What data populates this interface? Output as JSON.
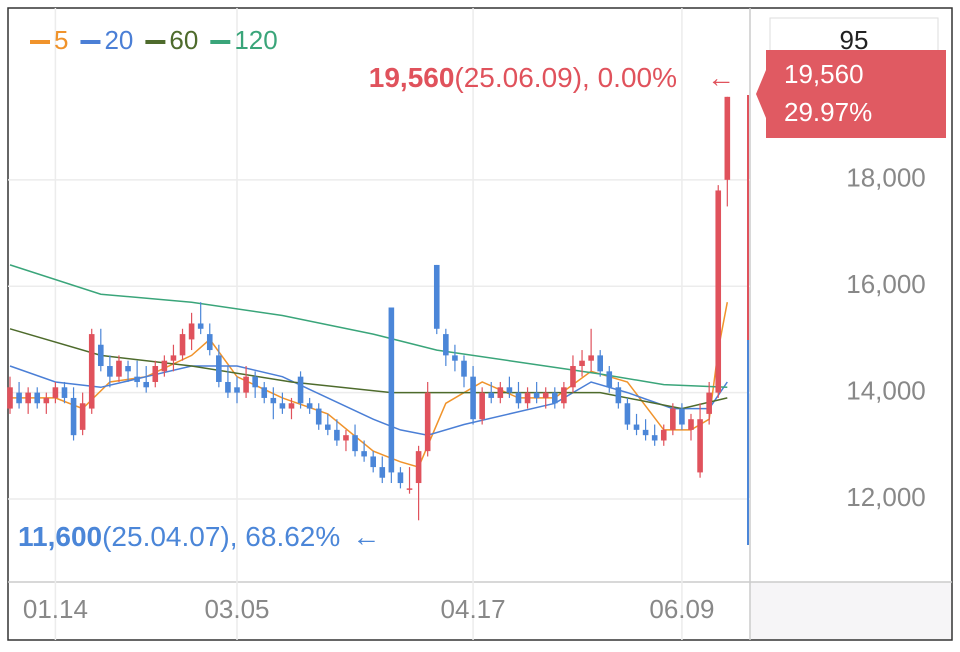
{
  "chart_data": {
    "type": "candlestick",
    "legend": [
      "5",
      "20",
      "60",
      "120"
    ],
    "categories": [
      null,
      null,
      null,
      null,
      null,
      "01.14",
      null,
      null,
      null,
      null,
      null,
      null,
      null,
      null,
      null,
      null,
      null,
      null,
      null,
      null,
      null,
      null,
      null,
      null,
      null,
      "03.05",
      null,
      null,
      null,
      null,
      null,
      null,
      null,
      null,
      null,
      null,
      null,
      null,
      null,
      null,
      null,
      null,
      null,
      null,
      null,
      null,
      null,
      null,
      null,
      null,
      null,
      "04.17",
      null,
      null,
      null,
      null,
      null,
      null,
      null,
      null,
      null,
      null,
      null,
      null,
      null,
      null,
      null,
      null,
      null,
      null,
      null,
      null,
      null,
      null,
      "06.09",
      null,
      null,
      null,
      null,
      null
    ],
    "open": [
      13700,
      14000,
      13800,
      14000,
      13800,
      13900,
      14100,
      13900,
      13300,
      13700,
      14900,
      14500,
      14300,
      14500,
      14300,
      14200,
      14200,
      14400,
      14600,
      14700,
      15000,
      15300,
      15100,
      14700,
      14200,
      14100,
      14000,
      14300,
      14100,
      13900,
      13800,
      13700,
      14300,
      13800,
      13700,
      13400,
      13300,
      13100,
      13200,
      12900,
      12800,
      12600,
      15600,
      12500,
      12200,
      12300,
      12900,
      16400,
      15100,
      14700,
      14600,
      14300,
      13500,
      14000,
      13900,
      14100,
      14000,
      13800,
      14000,
      13900,
      14000,
      13800,
      14100,
      14500,
      14600,
      14700,
      14400,
      14100,
      13800,
      13400,
      13300,
      13200,
      13100,
      13300,
      13700,
      13300,
      12500,
      13600,
      14000,
      18000
    ],
    "high": [
      14300,
      14200,
      14100,
      14100,
      14000,
      14200,
      14200,
      14100,
      14000,
      15200,
      15200,
      14700,
      14700,
      14600,
      14600,
      14500,
      14600,
      14700,
      14900,
      15200,
      15500,
      15700,
      15300,
      14900,
      14500,
      14300,
      14500,
      14400,
      14200,
      14100,
      14000,
      13900,
      14400,
      13900,
      13800,
      13600,
      13500,
      13300,
      13400,
      13100,
      12900,
      12800,
      15600,
      12600,
      12600,
      13000,
      14200,
      16400,
      15200,
      14900,
      14700,
      14500,
      14100,
      14200,
      14200,
      14300,
      14200,
      14100,
      14200,
      14100,
      14100,
      14200,
      14700,
      14800,
      15200,
      14800,
      14500,
      14200,
      13900,
      13600,
      13500,
      13400,
      13400,
      13800,
      13800,
      13600,
      13800,
      14200,
      17900,
      19560
    ],
    "low": [
      13600,
      13700,
      13600,
      13700,
      13600,
      13800,
      13800,
      13100,
      13200,
      13600,
      14400,
      14100,
      14200,
      14200,
      14100,
      14000,
      14100,
      14300,
      14400,
      14600,
      14800,
      15100,
      14700,
      14100,
      13900,
      13800,
      13900,
      13900,
      13800,
      13500,
      13600,
      13500,
      13700,
      13600,
      13300,
      13200,
      13000,
      12900,
      12800,
      12700,
      12500,
      12300,
      12300,
      12200,
      12100,
      11600,
      12800,
      15100,
      14500,
      14400,
      14100,
      13400,
      13400,
      13800,
      13800,
      13900,
      13700,
      13700,
      13800,
      13700,
      13700,
      13700,
      14000,
      14300,
      14400,
      14300,
      14000,
      13700,
      13300,
      13200,
      13100,
      13000,
      13000,
      13200,
      13300,
      13100,
      12400,
      13400,
      13900,
      17500
    ],
    "close": [
      14100,
      13800,
      14000,
      13800,
      13900,
      14100,
      13900,
      13200,
      13800,
      15100,
      14500,
      14300,
      14600,
      14400,
      14200,
      14100,
      14500,
      14600,
      14700,
      15100,
      15300,
      15200,
      14800,
      14200,
      14000,
      14000,
      14300,
      14100,
      13900,
      13800,
      13700,
      13800,
      13800,
      13700,
      13400,
      13300,
      13100,
      13200,
      12900,
      12800,
      12600,
      12400,
      12500,
      12300,
      12200,
      12900,
      14000,
      15200,
      14700,
      14600,
      14300,
      13500,
      14000,
      13900,
      14100,
      14000,
      13800,
      14000,
      13900,
      14000,
      13800,
      14100,
      14500,
      14600,
      14700,
      14400,
      14100,
      13800,
      13400,
      13300,
      13200,
      13100,
      13300,
      13700,
      13400,
      13500,
      13500,
      14000,
      17800,
      19560
    ],
    "up_color": "#e0525c",
    "down_color": "#4b86d8",
    "series": [
      {
        "name": "5",
        "color": "#f0932b",
        "x": [
          0,
          5,
          8,
          11,
          15,
          20,
          22,
          25,
          30,
          35,
          40,
          43,
          45,
          48,
          52,
          56,
          60,
          64,
          68,
          72,
          75,
          77,
          78,
          79
        ],
        "values": [
          13900,
          13900,
          13700,
          14200,
          14300,
          14700,
          15000,
          14300,
          13900,
          13600,
          12900,
          12700,
          12600,
          13800,
          14200,
          13900,
          13900,
          14400,
          14200,
          13300,
          13300,
          13500,
          14800,
          15700
        ]
      },
      {
        "name": "20",
        "color": "#4b7fd6",
        "x": [
          0,
          5,
          10,
          15,
          20,
          25,
          30,
          35,
          40,
          43,
          46,
          50,
          55,
          60,
          64,
          68,
          73,
          77,
          79
        ],
        "values": [
          14500,
          14200,
          14100,
          14300,
          14500,
          14500,
          14300,
          13900,
          13500,
          13300,
          13200,
          13400,
          13600,
          13800,
          14200,
          14000,
          13700,
          13700,
          14200
        ]
      },
      {
        "name": "60",
        "color": "#4e6b2c",
        "x": [
          0,
          10,
          20,
          31,
          42,
          55,
          65,
          74,
          79
        ],
        "values": [
          15200,
          14700,
          14500,
          14200,
          14000,
          14000,
          14000,
          13700,
          13900
        ]
      },
      {
        "name": "120",
        "color": "#3aa57a",
        "x": [
          0,
          10,
          20,
          30,
          40,
          47,
          55,
          65,
          72,
          79
        ],
        "values": [
          16400,
          15850,
          15700,
          15450,
          15100,
          14800,
          14600,
          14350,
          14150,
          14100
        ]
      }
    ],
    "ylim": [
      10440,
      21230
    ],
    "yticks": [
      {
        "value": 12000,
        "label": "12,000"
      },
      {
        "value": 14000,
        "label": "14,000"
      },
      {
        "value": 16000,
        "label": "16,000"
      },
      {
        "value": 18000,
        "label": "18,000"
      }
    ],
    "grid": true,
    "max_annotation": {
      "value": "19,560",
      "detail": "(25.06.09), 0.00%",
      "arrow": "←"
    },
    "min_annotation": {
      "value": "11,600",
      "detail": "(25.04.07), 68.62%",
      "arrow": "←"
    },
    "current_price": "19,560",
    "current_change": "29.97%",
    "top_box": "95"
  }
}
